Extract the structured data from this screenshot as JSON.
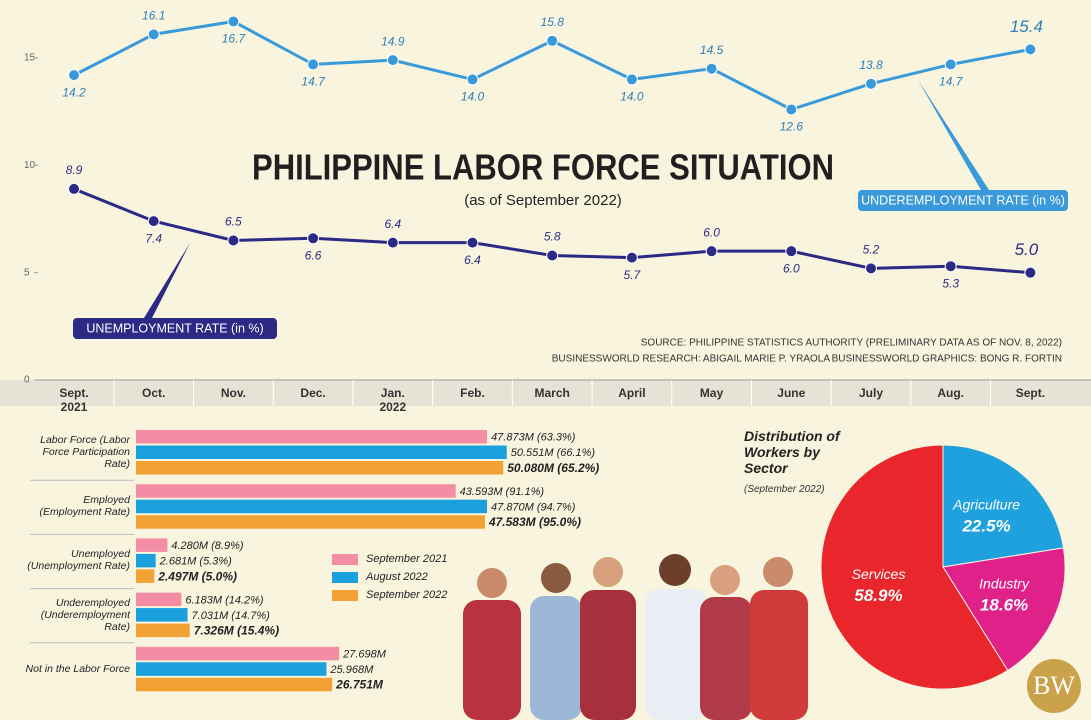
{
  "logo": "BW",
  "chart_data": [
    {
      "type": "line",
      "title": "PHILIPPINE LABOR FORCE SITUATION",
      "subtitle": "(as of September 2022)",
      "categories": [
        "Sept. 2021",
        "Oct.",
        "Nov.",
        "Dec.",
        "Jan. 2022",
        "Feb.",
        "March",
        "April",
        "May",
        "June",
        "July",
        "Aug.",
        "Sept."
      ],
      "series": [
        {
          "name": "UNDEREMPLOYMENT RATE (in %)",
          "color": "#3a9ad9",
          "values": [
            14.2,
            16.1,
            16.7,
            14.7,
            14.9,
            14.0,
            15.8,
            14.0,
            14.5,
            12.6,
            13.8,
            14.7,
            15.4
          ],
          "value_labels": [
            "14.2",
            "16.1",
            "16.7",
            "14.7",
            "14.9",
            "14.0",
            "15.8",
            "14.0",
            "14.5",
            "12.6",
            "13.8",
            "14.7",
            "15.4"
          ]
        },
        {
          "name": "UNEMPLOYMENT RATE (in %)",
          "color": "#2b2a84",
          "values": [
            8.9,
            7.4,
            6.5,
            6.6,
            6.4,
            6.4,
            5.8,
            5.7,
            6.0,
            6.0,
            5.2,
            5.3,
            5.0
          ],
          "value_labels": [
            "8.9",
            "7.4",
            "6.5",
            "6.6",
            "6.4",
            "6.4",
            "5.8",
            "5.7",
            "6.0",
            "6.0",
            "5.2",
            "5.3",
            "5.0"
          ]
        }
      ],
      "ylim": [
        0,
        17.7
      ],
      "yticks": [
        0,
        5,
        10,
        15
      ],
      "grid": false,
      "notes": [
        "SOURCE: PHILIPPINE STATISTICS AUTHORITY (PRELIMINARY DATA AS OF NOV. 8, 2022)",
        "BUSINESSWORLD RESEARCH: ABIGAIL MARIE P. YRAOLA",
        "BUSINESSWORLD GRAPHICS: BONG R. FORTIN"
      ]
    },
    {
      "type": "bar",
      "orientation": "horizontal",
      "categories": [
        "Labor Force (Labor Force Participation Rate)",
        "Employed (Employment Rate)",
        "Unemployed (Unemployment Rate)",
        "Underemployed (Underemployment Rate)",
        "Not in the Labor Force"
      ],
      "series": [
        {
          "name": "September 2021",
          "color": "#f28da3",
          "values": [
            47.873,
            43.593,
            4.28,
            6.183,
            27.698
          ],
          "value_labels": [
            "47.873M (63.3%)",
            "43.593M (91.1%)",
            "4.280M (8.9%)",
            "6.183M (14.2%)",
            "27.698M"
          ]
        },
        {
          "name": "August 2022",
          "color": "#1aa0dc",
          "values": [
            50.551,
            47.87,
            2.681,
            7.031,
            25.968
          ],
          "value_labels": [
            "50.551M (66.1%)",
            "47.870M (94.7%)",
            "2.681M (5.3%)",
            "7.031M (14.7%)",
            "25.968M"
          ]
        },
        {
          "name": "September 2022",
          "color": "#f2a233",
          "values": [
            50.08,
            47.583,
            2.497,
            7.326,
            26.751
          ],
          "value_labels": [
            "50.080M (65.2%)",
            "47.583M (95.0%)",
            "2.497M (5.0%)",
            "7.326M (15.4%)",
            "26.751M"
          ]
        }
      ],
      "xlim": [
        0,
        60
      ]
    },
    {
      "type": "pie",
      "title": "Distribution of Workers by Sector",
      "subtitle": "(September 2022)",
      "categories": [
        "Agriculture",
        "Industry",
        "Services"
      ],
      "values": [
        22.5,
        18.6,
        58.9
      ],
      "value_labels": [
        "22.5%",
        "18.6%",
        "58.9%"
      ],
      "colors": [
        "#1fa1de",
        "#e0218a",
        "#e8262b"
      ]
    }
  ]
}
